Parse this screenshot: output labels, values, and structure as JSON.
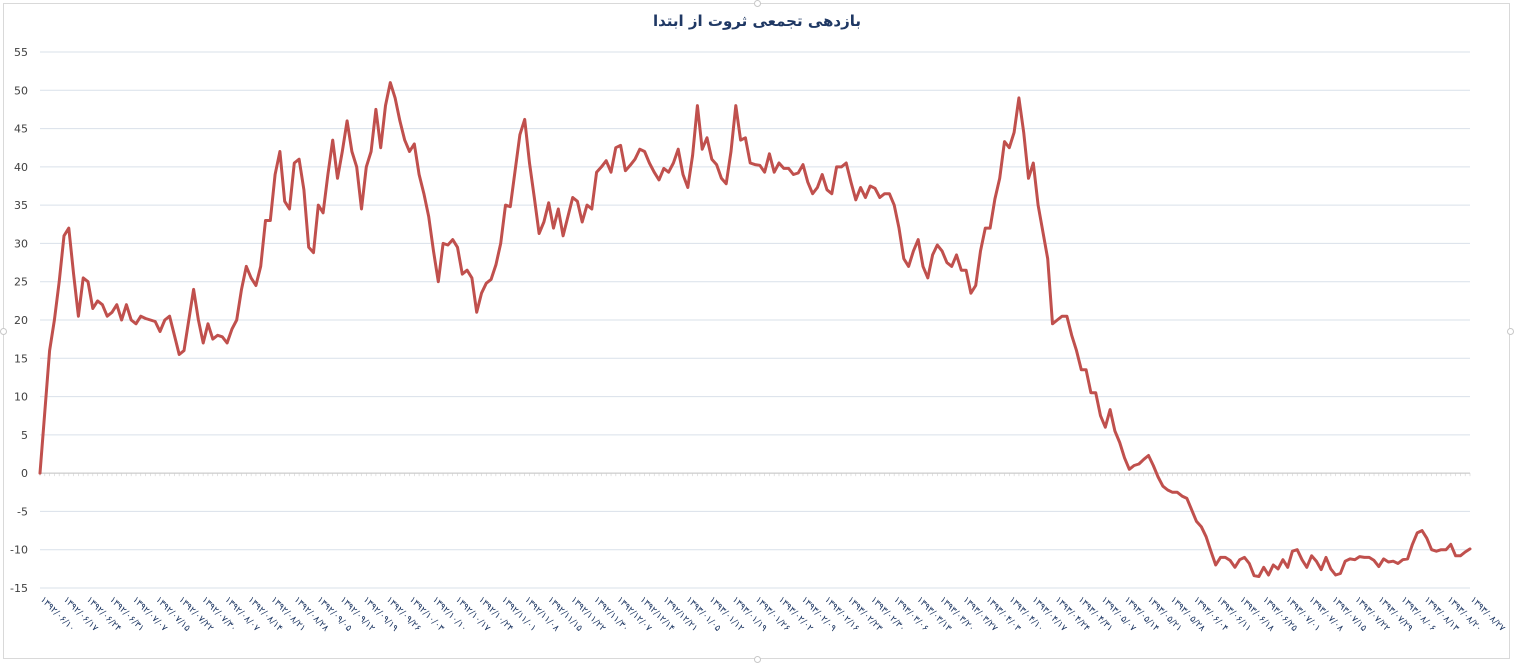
{
  "chart_data": {
    "type": "line",
    "title": "بازدهی تجمعی ثروت از ابتدا",
    "xlabel": "",
    "ylabel": "",
    "ylim": [
      -15,
      55
    ],
    "y_ticks": [
      -15,
      -10,
      -5,
      0,
      5,
      10,
      15,
      20,
      25,
      30,
      35,
      40,
      45,
      50,
      55
    ],
    "x_tick_labels": [
      "۱۳۹۲/۰۶/۱۰",
      "۱۳۹۲/۰۶/۱۷",
      "۱۳۹۲/۰۶/۲۴",
      "۱۳۹۲/۰۶/۳۱",
      "۱۳۹۲/۰۷/۰۷",
      "۱۳۹۲/۰۷/۱۵",
      "۱۳۹۲/۰۷/۲۲",
      "۱۳۹۲/۰۷/۳۰",
      "۱۳۹۲/۰۸/۰۷",
      "۱۳۹۲/۰۸/۱۴",
      "۱۳۹۲/۰۸/۲۱",
      "۱۳۹۲/۰۸/۲۸",
      "۱۳۹۲/۰۹/۰۵",
      "۱۳۹۲/۰۹/۱۲",
      "۱۳۹۲/۰۹/۱۹",
      "۱۳۹۲/۰۹/۲۶",
      "۱۳۹۲/۱۰/۰۳",
      "۱۳۹۲/۱۰/۱۰",
      "۱۳۹۲/۱۰/۱۷",
      "۱۳۹۲/۱۰/۲۴",
      "۱۳۹۲/۱۱/۰۱",
      "۱۳۹۲/۱۱/۰۸",
      "۱۳۹۲/۱۱/۱۵",
      "۱۳۹۲/۱۱/۲۲",
      "۱۳۹۲/۱۱/۳۰",
      "۱۳۹۲/۱۲/۰۷",
      "۱۳۹۲/۱۲/۱۴",
      "۱۳۹۲/۱۲/۲۱",
      "۱۳۹۳/۰۱/۰۵",
      "۱۳۹۳/۰۱/۱۲",
      "۱۳۹۳/۰۱/۱۹",
      "۱۳۹۳/۰۱/۲۶",
      "۱۳۹۳/۰۲/۰۲",
      "۱۳۹۳/۰۲/۰۹",
      "۱۳۹۳/۰۲/۱۶",
      "۱۳۹۳/۰۲/۲۳",
      "۱۳۹۳/۰۲/۳۰",
      "۱۳۹۳/۰۳/۰۶",
      "۱۳۹۳/۰۳/۱۳",
      "۱۳۹۳/۰۳/۲۰",
      "۱۳۹۳/۰۳/۲۷",
      "۱۳۹۳/۰۴/۰۳",
      "۱۳۹۳/۰۴/۱۰",
      "۱۳۹۳/۰۴/۱۷",
      "۱۳۹۳/۰۴/۲۴",
      "۱۳۹۳/۰۴/۳۱",
      "۱۳۹۳/۰۵/۰۷",
      "۱۳۹۳/۰۵/۱۴",
      "۱۳۹۳/۰۵/۲۱",
      "۱۳۹۳/۰۵/۲۸",
      "۱۳۹۳/۰۶/۰۴",
      "۱۳۹۳/۰۶/۱۱",
      "۱۳۹۳/۰۶/۱۸",
      "۱۳۹۳/۰۶/۲۵",
      "۱۳۹۳/۰۷/۰۱",
      "۱۳۹۳/۰۷/۰۸",
      "۱۳۹۳/۰۷/۱۵",
      "۱۳۹۳/۰۷/۲۲",
      "۱۳۹۳/۰۷/۲۹",
      "۱۳۹۳/۰۸/۰۶",
      "۱۳۹۳/۰۸/۱۳",
      "۱۳۹۳/۰۸/۲۰",
      "۱۳۹۳/۰۸/۲۷"
    ],
    "series": [
      {
        "color": "#c0504d",
        "values": [
          0,
          8,
          16,
          20,
          25,
          31,
          32,
          26,
          20.5,
          25.5,
          25,
          21.5,
          22.5,
          22,
          20.5,
          21,
          22,
          20,
          22,
          20,
          19.5,
          20.5,
          20.2,
          20,
          19.8,
          18.5,
          20,
          20.5,
          18,
          15.5,
          16,
          20,
          24,
          20,
          17,
          19.5,
          17.5,
          18,
          17.8,
          17,
          18.8,
          20,
          24,
          27,
          25.5,
          24.5,
          27,
          33,
          33,
          39,
          42,
          35.5,
          34.5,
          40.5,
          41,
          37,
          29.5,
          28.8,
          35,
          34,
          39,
          43.5,
          38.5,
          42,
          46,
          42,
          40,
          34.5,
          40,
          42,
          47.5,
          42.5,
          48,
          51,
          49,
          46,
          43.5,
          42,
          43,
          39,
          36.5,
          33.5,
          29,
          25,
          30,
          29.8,
          30.5,
          29.5,
          26,
          26.5,
          25.5,
          21,
          23.5,
          24.8,
          25.3,
          27.2,
          30,
          35,
          34.8,
          39.5,
          44.2,
          46.2,
          40.5,
          36,
          31.3,
          32.8,
          35.3,
          32,
          34.5,
          31,
          33.5,
          36,
          35.5,
          32.8,
          35,
          34.5,
          39.3,
          40,
          40.8,
          39.3,
          42.5,
          42.8,
          39.5,
          40.2,
          41,
          42.3,
          42,
          40.5,
          39.3,
          38.3,
          39.8,
          39.3,
          40.5,
          42.3,
          39,
          37.3,
          41.5,
          48,
          42.3,
          43.8,
          41,
          40.3,
          38.5,
          37.8,
          42,
          48,
          43.5,
          43.8,
          40.5,
          40.3,
          40.2,
          39.3,
          41.7,
          39.3,
          40.5,
          39.8,
          39.8,
          39,
          39.2,
          40.3,
          38,
          36.5,
          37.3,
          39,
          37,
          36.5,
          40,
          40,
          40.5,
          38,
          35.7,
          37.3,
          36,
          37.5,
          37.2,
          36,
          36.5,
          36.5,
          35,
          32,
          28,
          27,
          29,
          30.5,
          27,
          25.5,
          28.5,
          29.8,
          29,
          27.5,
          27,
          28.5,
          26.5,
          26.5,
          23.5,
          24.5,
          29,
          32,
          32,
          35.8,
          38.5,
          43.3,
          42.5,
          44.5,
          49,
          44.5,
          38.5,
          40.5,
          35,
          31.5,
          28,
          19.5,
          20,
          20.5,
          20.5,
          18,
          16,
          13.5,
          13.5,
          10.5,
          10.5,
          7.5,
          6,
          8.3,
          5.5,
          4,
          2,
          0.5,
          1,
          1.2,
          1.8,
          2.3,
          1,
          -0.5,
          -1.7,
          -2.2,
          -2.5,
          -2.5,
          -3,
          -3.3,
          -4.8,
          -6.3,
          -7,
          -8.3,
          -10.2,
          -12,
          -11,
          -11,
          -11.4,
          -12.3,
          -11.3,
          -11,
          -11.8,
          -13.4,
          -13.5,
          -12.3,
          -13.3,
          -12,
          -12.5,
          -11.3,
          -12.3,
          -10.2,
          -10,
          -11.3,
          -12.3,
          -10.8,
          -11.5,
          -12.6,
          -11,
          -12.5,
          -13.3,
          -13.1,
          -11.5,
          -11.2,
          -11.3,
          -10.9,
          -11,
          -11,
          -11.4,
          -12.2,
          -11.2,
          -11.6,
          -11.5,
          -11.8,
          -11.3,
          -11.2,
          -9.3,
          -7.8,
          -7.5,
          -8.5,
          -10,
          -10.2,
          -10,
          -10,
          -9.3,
          -10.8,
          -10.8,
          -10.3,
          -9.9
        ]
      }
    ],
    "grid": "horizontal",
    "legend": "none"
  }
}
